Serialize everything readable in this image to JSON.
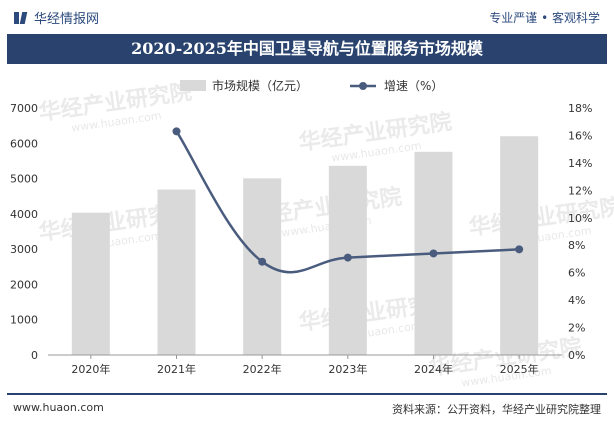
{
  "header": {
    "brand": "华经情报网",
    "slogan": "专业严谨 • 客观科学"
  },
  "chart_data": {
    "type": "bar",
    "title": "2020-2025年中国卫星导航与位置服务市场规模",
    "categories": [
      "2020年",
      "2021年",
      "2022年",
      "2023年",
      "2024年",
      "2025年"
    ],
    "series": [
      {
        "name": "市场规模（亿元）",
        "type": "bar",
        "axis": "left",
        "color": "#d9d9d9",
        "values": [
          4033,
          4690,
          5007,
          5362,
          5758,
          6200
        ]
      },
      {
        "name": "增速（%）",
        "type": "line",
        "axis": "right",
        "color": "#4a5c7e",
        "values": [
          null,
          16.3,
          6.8,
          7.1,
          7.4,
          7.7
        ]
      }
    ],
    "y_left": {
      "min": 0,
      "max": 7000,
      "ticks": [
        "0",
        "1000",
        "2000",
        "3000",
        "4000",
        "5000",
        "6000",
        "7000"
      ]
    },
    "y_right": {
      "min": 0,
      "max": 18,
      "ticks": [
        "0%",
        "2%",
        "4%",
        "6%",
        "8%",
        "10%",
        "12%",
        "14%",
        "16%",
        "18%"
      ]
    },
    "legend_position": "top",
    "grid": false
  },
  "watermark": {
    "text": "华经产业研究院",
    "url": "www.huaon.com"
  },
  "footer": {
    "site": "www.huaon.com",
    "source": "资料来源：公开资料，华经产业研究院整理"
  }
}
